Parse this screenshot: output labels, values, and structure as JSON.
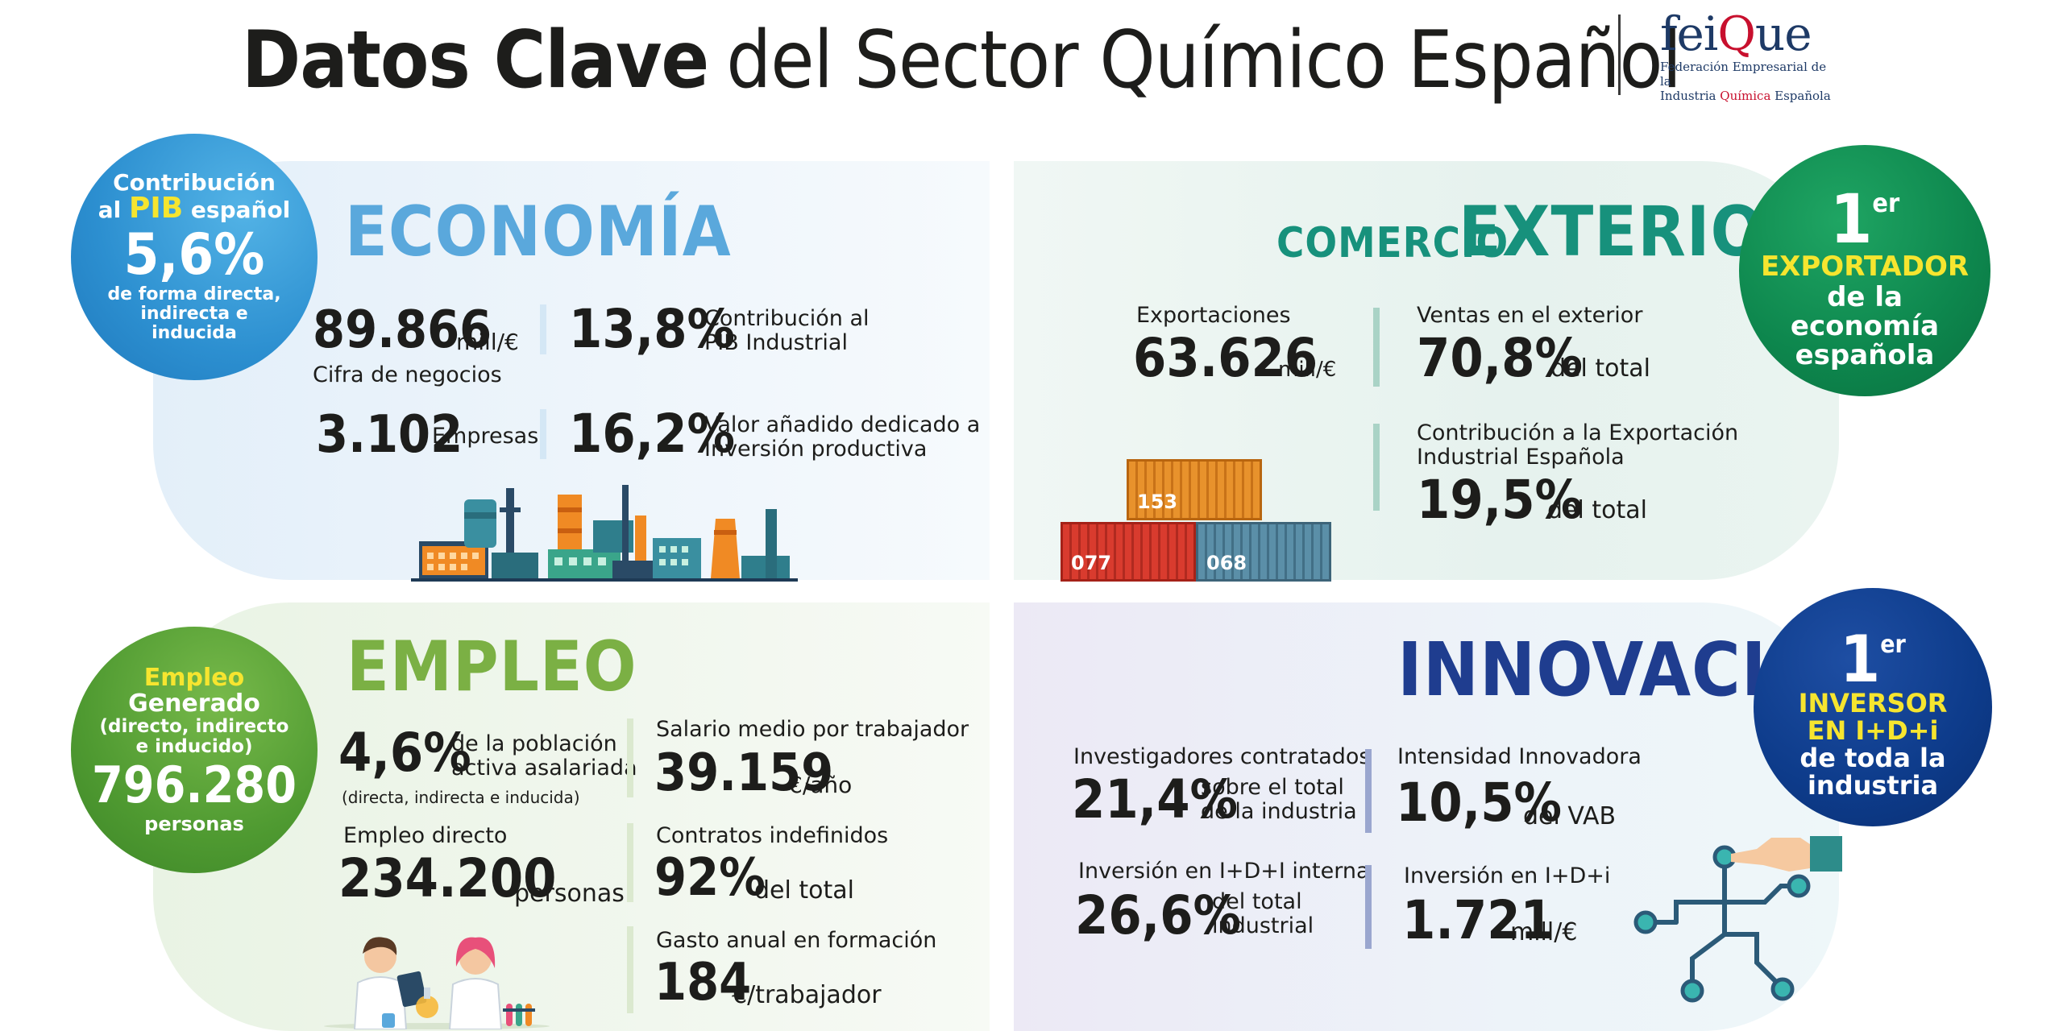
{
  "header": {
    "title_bold": "Datos Clave",
    "title_regular": "del Sector Químico Español",
    "logo_word_a": "fei",
    "logo_word_b": "Q",
    "logo_word_c": "ue",
    "logo_line1": "Federación Empresarial de la",
    "logo_line2_a": "Industria ",
    "logo_line2_b": "Química",
    "logo_line2_c": " Española"
  },
  "economia": {
    "title": "ECONOMÍA",
    "circle": {
      "l1": "Contribución",
      "l2a": "al ",
      "l2b": "PIB",
      "l2c": " español",
      "value": "5,6%",
      "l3": "de forma directa,",
      "l4": "indirecta e",
      "l5": "inducida"
    },
    "cifra_value": "89.866",
    "cifra_unit": "mill/€",
    "cifra_label": "Cifra de negocios",
    "pib_ind_value": "13,8%",
    "pib_ind_l1": "Contribución al",
    "pib_ind_l2": "PIB Industrial",
    "empresas_value": "3.102",
    "empresas_label": "Empresas",
    "va_value": "16,2%",
    "va_l1": "Valor añadido dedicado a",
    "va_l2": "Inversión productiva"
  },
  "comercio": {
    "title_small": "COMERCIO",
    "title_big": "EXTERIOR",
    "export_label": "Exportaciones",
    "export_value": "63.626",
    "export_unit": "mill/€",
    "ventas_label": "Ventas en el exterior",
    "ventas_value": "70,8%",
    "ventas_unit": "del total",
    "contrib_l1": "Contribución a la Exportación",
    "contrib_l2": "Industrial Española",
    "contrib_value": "19,5%",
    "contrib_unit": "del total",
    "containers": [
      "153",
      "077",
      "068"
    ],
    "circle": {
      "rank": "1",
      "sup": "er",
      "l1": "EXPORTADOR",
      "l2": "de la",
      "l3": "economía",
      "l4": "española"
    }
  },
  "empleo": {
    "title": "EMPLEO",
    "circle": {
      "l1": "Empleo",
      "l2": "Generado",
      "l3": "(directo, indirecto",
      "l4": "e inducido)",
      "value": "796.280",
      "l5": "personas"
    },
    "pob_value": "4,6%",
    "pob_l1": "de la población",
    "pob_l2": "activa asalariada",
    "pob_note": "(directa, indirecta e inducida)",
    "directo_label": "Empleo directo",
    "directo_value": "234.200",
    "directo_unit": "personas",
    "salario_label": "Salario medio por trabajador",
    "salario_value": "39.159",
    "salario_unit": "€/año",
    "contratos_label": "Contratos indefinidos",
    "contratos_value": "92%",
    "contratos_unit": "del total",
    "formacion_label": "Gasto anual en formación",
    "formacion_value": "184",
    "formacion_unit": "€/trabajador"
  },
  "innovacion": {
    "title": "INNOVACIÓN",
    "inv_label": "Investigadores contratados",
    "inv_value": "21,4%",
    "inv_l1": "sobre el total",
    "inv_l2": "de la industria",
    "intens_label": "Intensidad Innovadora",
    "intens_value": "10,5%",
    "intens_unit": "del VAB",
    "idi_int_label": "Inversión en I+D+I interna",
    "idi_int_value": "26,6%",
    "idi_int_l1": "del total",
    "idi_int_l2": "industrial",
    "idi_label": "Inversión en I+D+i",
    "idi_value": "1.721",
    "idi_unit": "mill/€",
    "circle": {
      "rank": "1",
      "sup": "er",
      "l1": "INVERSOR",
      "l2": "EN I+D+i",
      "l3": "de toda la",
      "l4": "industria"
    }
  },
  "colors": {
    "economia": "#5aa8dc",
    "comercio": "#17917c",
    "empleo": "#7bb044",
    "innovacion": "#1f3d8f",
    "yellow": "#f6e52f"
  }
}
